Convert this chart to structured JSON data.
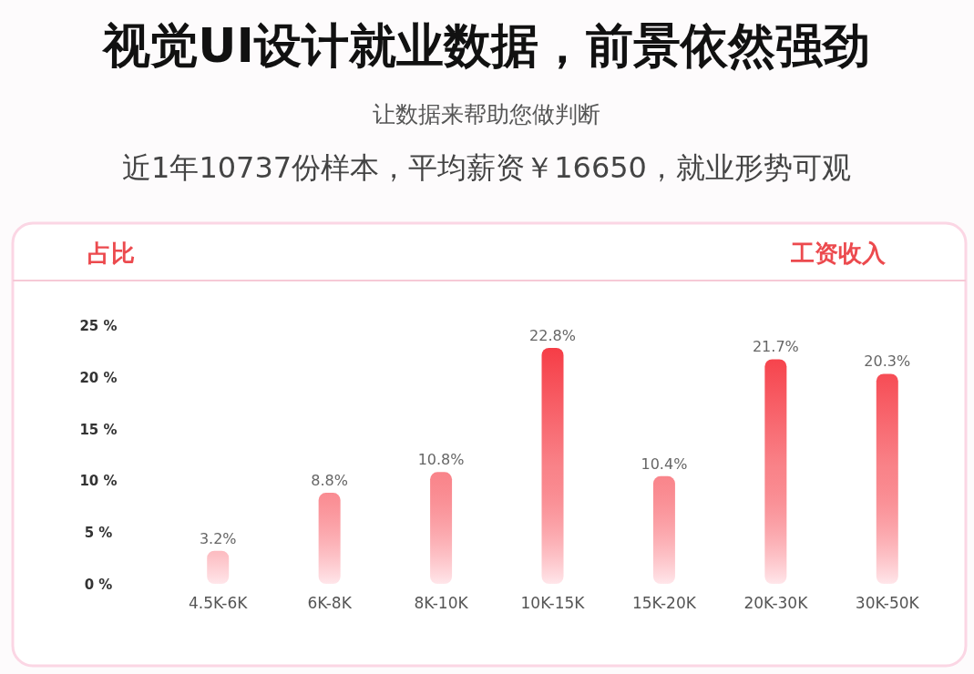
{
  "chart_data": {
    "type": "bar",
    "title": "视觉UI设计就业数据，前景依然强劲",
    "subtitle": "让数据来帮助您做判断",
    "annotations": [
      "近1年10737份样本，平均薪资￥16650，就业形势可观"
    ],
    "ylabel": "占比",
    "xlabel": "工资收入",
    "categories": [
      "4.5K-6K",
      "6K-8K",
      "8K-10K",
      "10K-15K",
      "15K-20K",
      "20K-30K",
      "30K-50K"
    ],
    "values": [
      3.2,
      8.8,
      10.8,
      22.8,
      10.4,
      21.7,
      20.3
    ],
    "value_labels": [
      "3.2%",
      "8.8%",
      "10.8%",
      "22.8%",
      "10.4%",
      "21.7%",
      "20.3%"
    ],
    "color": "#f5303a",
    "ylim": [
      0,
      25
    ],
    "yticks": [
      {
        "value": 0,
        "label": "0 %"
      },
      {
        "value": 5,
        "label": "5 %"
      },
      {
        "value": 10,
        "label": "10 %"
      },
      {
        "value": 15,
        "label": "15 %"
      },
      {
        "value": 20,
        "label": "20 %"
      },
      {
        "value": 25,
        "label": "25 %"
      }
    ]
  }
}
